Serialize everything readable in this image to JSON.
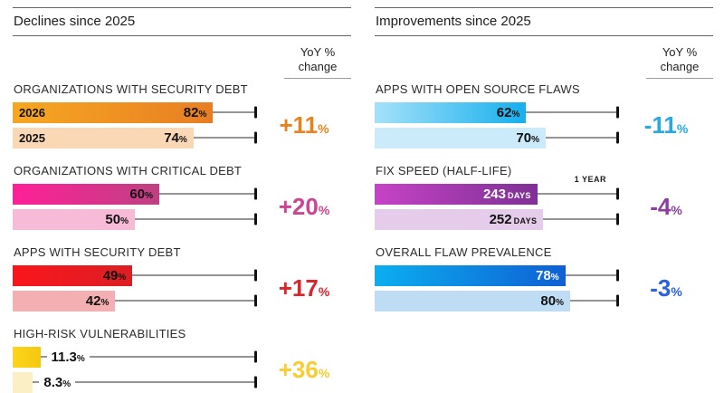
{
  "panels": [
    {
      "header": "Declines since 2025",
      "yoy_head_line1": "YoY %",
      "yoy_head_line2": "change"
    },
    {
      "header": "Improvements since 2025",
      "yoy_head_line1": "YoY %",
      "yoy_head_line2": "change"
    }
  ],
  "palette": {
    "orange": {
      "bar": {
        "from": "#F6A722",
        "to": "#E87E23"
      },
      "light": "#FAD8B6",
      "accent": "#E8821F"
    },
    "pink": {
      "bar": {
        "from": "#FF2098",
        "to": "#BE4183"
      },
      "light": "#F7BBD7",
      "accent": "#CC4493"
    },
    "red": {
      "bar": {
        "from": "#F9161B",
        "to": "#DC1F24"
      },
      "light": "#F4AFB2",
      "accent": "#D9252B"
    },
    "yellow": {
      "bar": {
        "from": "#FCD51D",
        "to": "#F6C70E"
      },
      "light": "#FAEFC5",
      "accent": "#F8CD32"
    },
    "cyan": {
      "bar": {
        "from": "#A5E1F9",
        "to": "#16AFED"
      },
      "light": "#CBEBFA",
      "accent": "#27AAE1"
    },
    "purple": {
      "bar": {
        "from": "#C643C6",
        "to": "#7E3095"
      },
      "light": "#E5CCEA",
      "accent": "#8C3F9E"
    },
    "blue": {
      "bar": {
        "from": "#0CAEEF",
        "to": "#0E60D4"
      },
      "light": "#BFDCF5",
      "accent": "#2A62D9"
    }
  },
  "chart_data": [
    {
      "type": "bar",
      "panel": "Declines since 2025",
      "title": "ORGANIZATIONS WITH SECURITY DEBT",
      "axis_max": 100,
      "axis_unit": "%",
      "yoy_display": "+11",
      "yoy_unit": "%",
      "color": "orange",
      "bars": [
        {
          "label": "2026",
          "display": "82",
          "unit": "%",
          "value": 82,
          "max": 100
        },
        {
          "label": "2025",
          "display": "74",
          "unit": "%",
          "value": 74,
          "max": 100
        }
      ]
    },
    {
      "type": "bar",
      "panel": "Declines since 2025",
      "title": "ORGANIZATIONS WITH CRITICAL DEBT",
      "axis_max": 100,
      "axis_unit": "%",
      "yoy_display": "+20",
      "yoy_unit": "%",
      "color": "pink",
      "bars": [
        {
          "display": "60",
          "unit": "%",
          "value": 60,
          "max": 100
        },
        {
          "display": "50",
          "unit": "%",
          "value": 50,
          "max": 100
        }
      ]
    },
    {
      "type": "bar",
      "panel": "Declines since 2025",
      "title": "APPS WITH SECURITY DEBT",
      "axis_max": 100,
      "axis_unit": "%",
      "yoy_display": "+17",
      "yoy_unit": "%",
      "color": "red",
      "bars": [
        {
          "display": "49",
          "unit": "%",
          "value": 49,
          "max": 100
        },
        {
          "display": "42",
          "unit": "%",
          "value": 42,
          "max": 100
        }
      ]
    },
    {
      "type": "bar",
      "panel": "Declines since 2025",
      "title": "HIGH-RISK VULNERABILITIES",
      "axis_max": 100,
      "axis_unit": "%",
      "yoy_display": "+36",
      "yoy_unit": "%",
      "color": "yellow",
      "bars": [
        {
          "display": "11.3",
          "unit": "%",
          "value": 11.3,
          "max": 100
        },
        {
          "display": "8.3",
          "unit": "%",
          "value": 8.3,
          "max": 100
        }
      ]
    },
    {
      "type": "bar",
      "panel": "Improvements since 2025",
      "title": "APPS WITH OPEN SOURCE FLAWS",
      "axis_max": 100,
      "axis_unit": "%",
      "yoy_display": "-11",
      "yoy_unit": "%",
      "color": "cyan",
      "bars": [
        {
          "display": "62",
          "unit": "%",
          "value": 62,
          "max": 100
        },
        {
          "display": "70",
          "unit": "%",
          "value": 70,
          "max": 100
        }
      ]
    },
    {
      "type": "bar",
      "panel": "Improvements since 2025",
      "title": "FIX SPEED (HALF-LIFE)",
      "axis_max": 365,
      "axis_unit": "days",
      "ref_label": "1 YEAR",
      "yoy_display": "-4",
      "yoy_unit": "%",
      "color": "purple",
      "bars": [
        {
          "display": "243",
          "unit": "DAYS",
          "value": 243,
          "max": 365
        },
        {
          "display": "252",
          "unit": "DAYS",
          "value": 252,
          "max": 365
        }
      ]
    },
    {
      "type": "bar",
      "panel": "Improvements since 2025",
      "title": "OVERALL FLAW PREVALENCE",
      "axis_max": 100,
      "axis_unit": "%",
      "yoy_display": "-3",
      "yoy_unit": "%",
      "color": "blue",
      "bars": [
        {
          "display": "78",
          "unit": "%",
          "value": 78,
          "max": 100
        },
        {
          "display": "80",
          "unit": "%",
          "value": 80,
          "max": 100
        }
      ]
    }
  ]
}
